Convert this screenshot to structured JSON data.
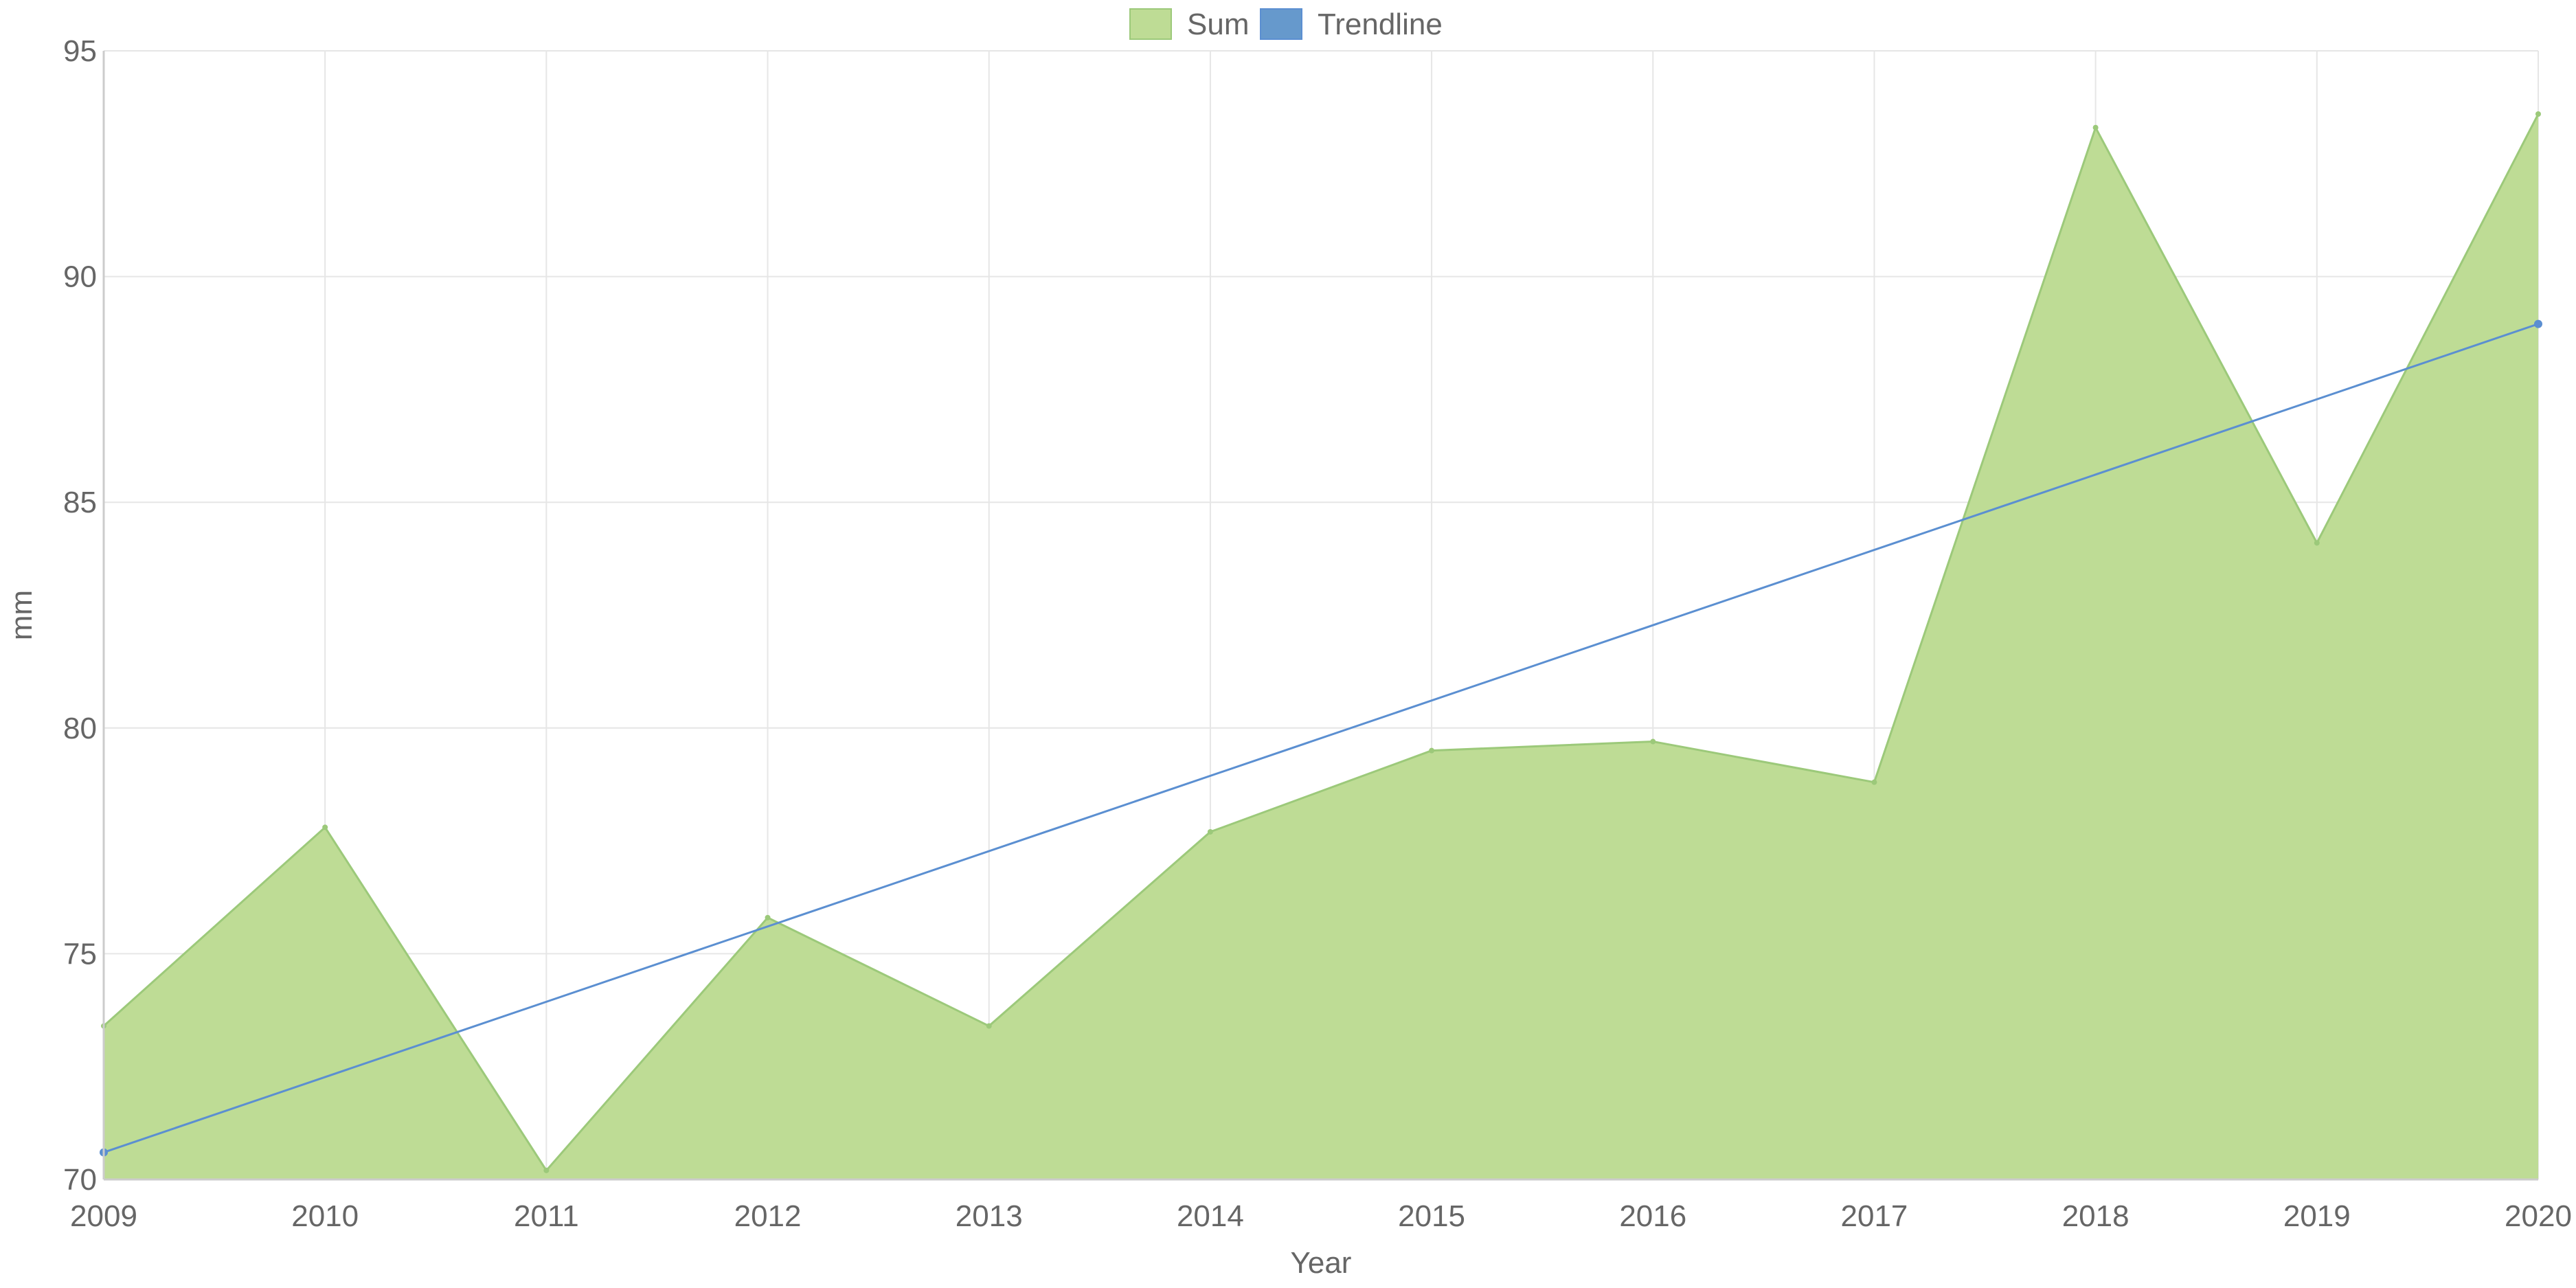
{
  "chart_data": {
    "type": "area",
    "xlabel": "Year",
    "ylabel": "mm",
    "x": [
      2009,
      2010,
      2011,
      2012,
      2013,
      2014,
      2015,
      2016,
      2017,
      2018,
      2019,
      2020
    ],
    "x_tick_labels": [
      "2009",
      "2010",
      "2011",
      "2012",
      "2013",
      "2014",
      "2015",
      "2016",
      "2017",
      "2018",
      "2019",
      "2020"
    ],
    "ylim": [
      70,
      95
    ],
    "y_ticks": [
      70,
      75,
      80,
      85,
      90,
      95
    ],
    "y_tick_labels": [
      "70",
      "75",
      "80",
      "85",
      "90",
      "95"
    ],
    "grid": true,
    "legend_position": "top-center",
    "series": [
      {
        "name": "Sum",
        "type": "area",
        "color": "#b5d98a",
        "fill_color": "#bedc95",
        "line_color": "#9cc97a",
        "values": [
          73.4,
          77.8,
          70.2,
          75.8,
          73.4,
          77.7,
          79.5,
          79.7,
          78.8,
          93.3,
          84.1,
          93.6
        ]
      },
      {
        "name": "Trendline",
        "type": "line",
        "color": "#6699cc",
        "line_color": "#5b8fd1",
        "values": [
          70.6,
          88.95
        ],
        "x": [
          2009,
          2020
        ]
      }
    ]
  }
}
